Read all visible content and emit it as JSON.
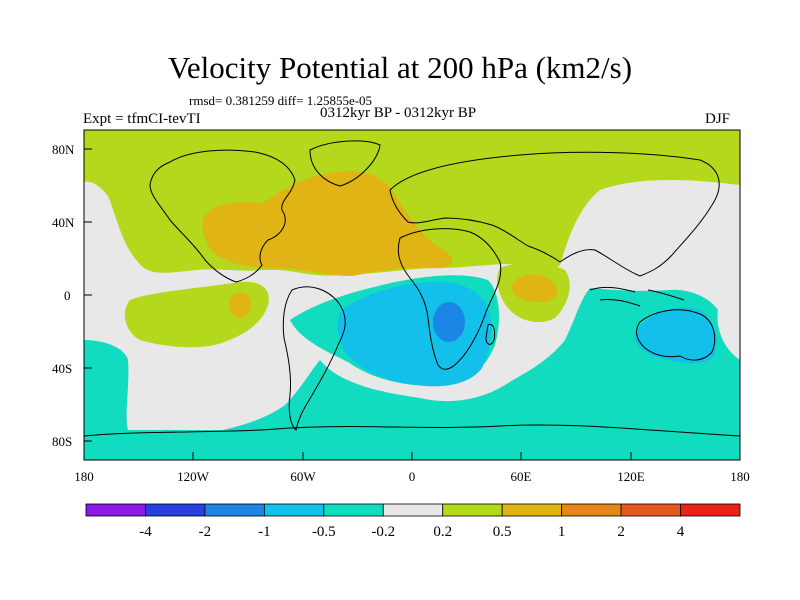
{
  "title": "Velocity Potential at 200 hPa (km2/s)",
  "stats": "rmsd= 0.381259 diff= 1.25855e-05",
  "experiment": "Expt = tfmCI-tevTI",
  "period": "0312kyr BP - 0312kyr BP",
  "season": "DJF",
  "axes": {
    "lon_ticks": [
      "180",
      "120W",
      "60W",
      "0",
      "60E",
      "120E",
      "180"
    ],
    "lat_ticks": [
      "80N",
      "40N",
      "0",
      "40S",
      "80S"
    ]
  },
  "colorbar": {
    "labels": [
      "-4",
      "-2",
      "-1",
      "-0.5",
      "-0.2",
      "0.2",
      "0.5",
      "1",
      "2",
      "4"
    ],
    "colors": [
      "#8b1ae6",
      "#2a3fe0",
      "#1c86e6",
      "#12c0ea",
      "#11dcc0",
      "#e8e8e8",
      "#b4d81c",
      "#e0b414",
      "#e58718",
      "#e6581c",
      "#e8231a"
    ]
  },
  "fill_colors": {
    "ocean_base": "#e8e8e8",
    "positive_weak": "#b4d81c",
    "positive_moderate": "#e0b414",
    "negative_weak": "#11dcc0",
    "negative_moderate": "#12c0ea",
    "negative_strong": "#1c86e6"
  }
}
